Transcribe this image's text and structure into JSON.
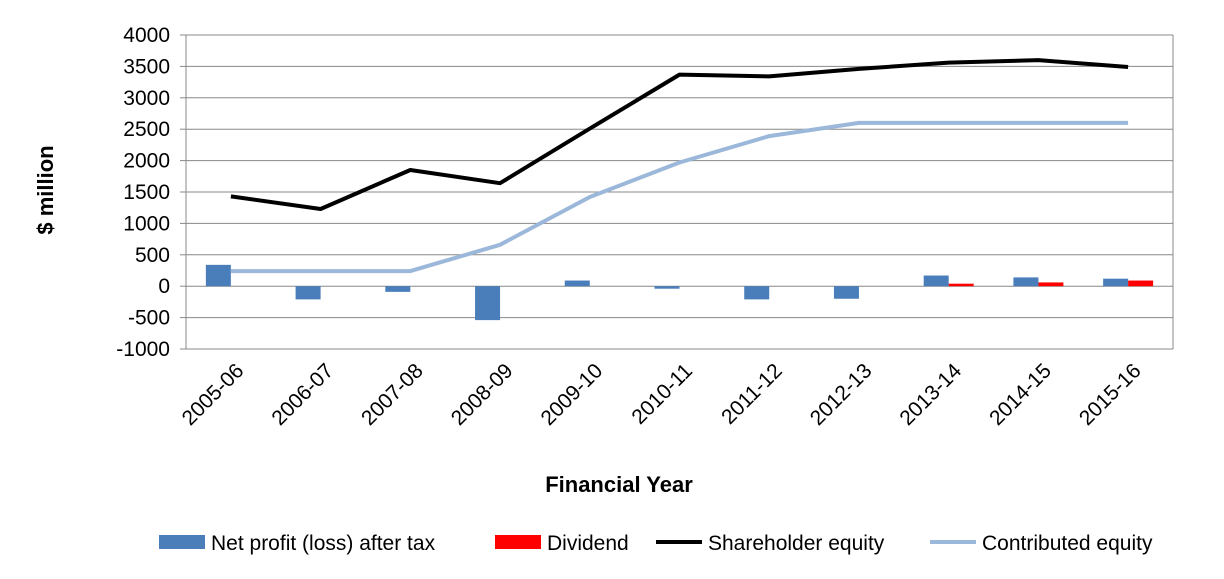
{
  "chart_data": {
    "type": "bar",
    "categories": [
      "2005-06",
      "2006-07",
      "2007-08",
      "2008-09",
      "2009-10",
      "2010-11",
      "2011-12",
      "2012-13",
      "2013-14",
      "2014-15",
      "2015-16"
    ],
    "series": [
      {
        "name": "Net profit (loss) after tax",
        "type": "bar",
        "color": "#4a7ebb",
        "values": [
          340,
          -210,
          -90,
          -540,
          90,
          -40,
          -210,
          -200,
          170,
          140,
          120
        ]
      },
      {
        "name": "Dividend",
        "type": "bar",
        "color": "#ff0000",
        "values": [
          0,
          0,
          0,
          0,
          0,
          0,
          0,
          0,
          40,
          60,
          90
        ]
      },
      {
        "name": "Shareholder equity",
        "type": "line",
        "color": "#000000",
        "values": [
          1430,
          1230,
          1850,
          1640,
          2510,
          3370,
          3340,
          3460,
          3560,
          3600,
          3490
        ]
      },
      {
        "name": "Contributed equity",
        "type": "line",
        "color": "#9bb7d9",
        "values": [
          240,
          240,
          240,
          660,
          1420,
          1970,
          2390,
          2600,
          2600,
          2600,
          2600
        ]
      }
    ],
    "xlabel": "Financial Year",
    "ylabel": "$ million",
    "ylim": [
      -1000,
      4000
    ],
    "yticks": [
      4000,
      3500,
      3000,
      2500,
      2000,
      1500,
      1000,
      500,
      0,
      -500,
      -1000
    ],
    "grid": true,
    "legend_position": "bottom"
  }
}
